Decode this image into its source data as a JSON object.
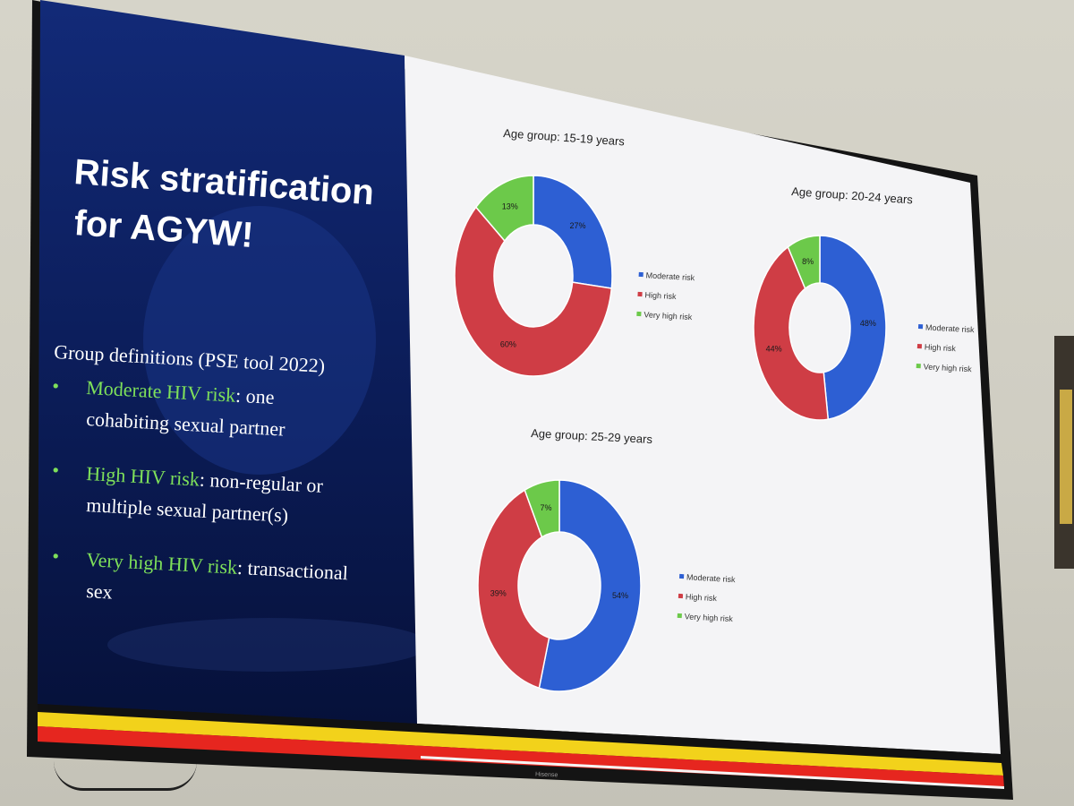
{
  "slide": {
    "title_line1": "Risk stratification",
    "title_line2": "for AGYW!",
    "definitions_heading": "Group definitions (PSE tool 2022)",
    "definitions": [
      {
        "term": "Moderate HIV risk",
        "line1_rest": ": one",
        "line2": "cohabiting sexual partner"
      },
      {
        "term": "High HIV risk",
        "line1_rest": ": non-regular or",
        "line2": "multiple sexual partner(s)"
      },
      {
        "term": "Very high HIV risk",
        "line1_rest": ": transactional",
        "line2": "sex"
      }
    ],
    "bullet": "•"
  },
  "legend": {
    "moderate": "Moderate risk",
    "high": "High risk",
    "very_high": "Very high risk"
  },
  "tv": {
    "brand": "Hisense"
  },
  "colors": {
    "moderate": "#2d5fd3",
    "high": "#cf3d45",
    "very_high": "#6cc94a",
    "slide_left_bg": "#0b1b59",
    "highlight_text": "#7ee05a",
    "stripe_yellow": "#f2d21b",
    "stripe_red": "#e6261f"
  },
  "chart_data": [
    {
      "type": "pie",
      "title": "Age group: 15-19 years",
      "categories": [
        "Moderate risk",
        "High risk",
        "Very high risk"
      ],
      "values": [
        27,
        60,
        13
      ],
      "labels": [
        "27%",
        "60%",
        "13%"
      ]
    },
    {
      "type": "pie",
      "title": "Age group: 20-24 years",
      "categories": [
        "Moderate risk",
        "High risk",
        "Very high risk"
      ],
      "values": [
        48,
        44,
        8
      ],
      "labels": [
        "48%",
        "44%",
        "8%"
      ]
    },
    {
      "type": "pie",
      "title": "Age group: 25-29 years",
      "categories": [
        "Moderate risk",
        "High risk",
        "Very high risk"
      ],
      "values": [
        54,
        39,
        7
      ],
      "labels": [
        "54%",
        "39%",
        "7%"
      ]
    }
  ]
}
